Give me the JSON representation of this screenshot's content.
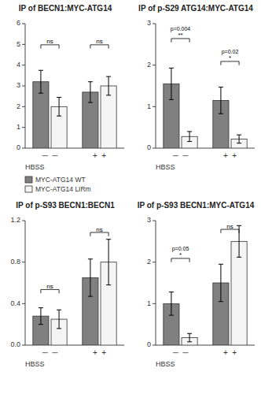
{
  "chart_data": [
    {
      "type": "bar",
      "title": "IP of BECN1:MYC-ATG14",
      "categories": [
        "─  ─",
        "+  +"
      ],
      "x_label": "HBSS",
      "series": [
        {
          "name": "MYC-ATG14 WT",
          "color": "#808080",
          "values": [
            3.2,
            2.7
          ],
          "errors": [
            0.55,
            0.5
          ]
        },
        {
          "name": "MYC-ATG14 LIRm",
          "color": "#f5f5f5",
          "values": [
            2.0,
            3.0
          ],
          "errors": [
            0.45,
            0.45
          ]
        }
      ],
      "ylim": [
        0,
        6
      ],
      "yticks": [
        0,
        1,
        2,
        3,
        4,
        5,
        6
      ],
      "grid": false,
      "legend": "bottom",
      "significance": [
        {
          "y": 4.8,
          "label": "ns"
        },
        {
          "y": 4.8,
          "label": "ns"
        }
      ]
    },
    {
      "type": "bar",
      "title": "IP of p-S29 ATG14:MYC-ATG14",
      "categories": [
        "─  ─",
        "+  +"
      ],
      "x_label": "HBSS",
      "series": [
        {
          "color": "#808080",
          "values": [
            1.55,
            1.15
          ],
          "errors": [
            0.38,
            0.32
          ]
        },
        {
          "color": "#f5f5f5",
          "values": [
            0.28,
            0.22
          ],
          "errors": [
            0.12,
            0.1
          ]
        }
      ],
      "ylim": [
        0,
        3
      ],
      "yticks": [
        0,
        1,
        2,
        3
      ],
      "grid": false,
      "significance": [
        {
          "y": 2.55,
          "label": "**",
          "pval": "p=0.004"
        },
        {
          "y": 2.0,
          "label": "*",
          "pval": "p=0.02"
        }
      ]
    },
    {
      "type": "bar",
      "title": "IP of p-S93 BECN1:BECN1",
      "categories": [
        "─  ─",
        "+  +"
      ],
      "x_label": "HBSS",
      "series": [
        {
          "color": "#808080",
          "values": [
            0.28,
            0.65
          ],
          "errors": [
            0.08,
            0.18
          ]
        },
        {
          "color": "#f5f5f5",
          "values": [
            0.25,
            0.8
          ],
          "errors": [
            0.09,
            0.22
          ]
        }
      ],
      "ylim": [
        0,
        1.2
      ],
      "yticks": [
        {
          "value": 0,
          "label": "0.0"
        },
        0.4,
        0.8,
        1.2
      ],
      "grid": false,
      "significance": [
        {
          "y": 0.5,
          "label": "ns"
        },
        {
          "y": 1.05,
          "label": "ns"
        }
      ]
    },
    {
      "type": "bar",
      "title": "IP of p-S93 BECN1:MYC-ATG14",
      "categories": [
        "─  ─",
        "+  +"
      ],
      "x_label": "HBSS",
      "series": [
        {
          "color": "#808080",
          "values": [
            1.0,
            1.5
          ],
          "errors": [
            0.28,
            0.45
          ]
        },
        {
          "color": "#f5f5f5",
          "values": [
            0.18,
            2.5
          ],
          "errors": [
            0.1,
            0.38
          ]
        }
      ],
      "ylim": [
        0,
        3
      ],
      "yticks": [
        0,
        1,
        2,
        3
      ],
      "grid": false,
      "significance": [
        {
          "y": 2.0,
          "label": "*",
          "pval": "p=0.05"
        },
        {
          "y": 2.7,
          "label": "ns"
        }
      ]
    }
  ]
}
